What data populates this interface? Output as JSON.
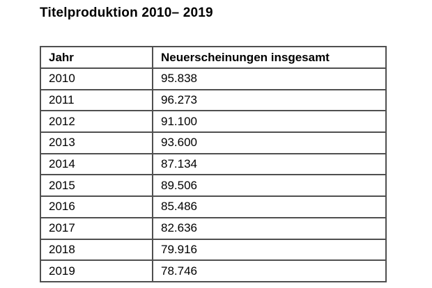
{
  "page": {
    "title": "Titelproduktion 2010– 2019"
  },
  "table": {
    "columns": [
      "Jahr",
      "Neuerscheinungen insgesamt"
    ],
    "rows": [
      {
        "jahr": "2010",
        "wert": "95.838"
      },
      {
        "jahr": "2011",
        "wert": "96.273"
      },
      {
        "jahr": "2012",
        "wert": "91.100"
      },
      {
        "jahr": "2013",
        "wert": "93.600"
      },
      {
        "jahr": "2014",
        "wert": "87.134"
      },
      {
        "jahr": "2015",
        "wert": "89.506"
      },
      {
        "jahr": "2016",
        "wert": "85.486"
      },
      {
        "jahr": "2017",
        "wert": "82.636"
      },
      {
        "jahr": "2018",
        "wert": "79.916"
      },
      {
        "jahr": "2019",
        "wert": "78.746"
      }
    ]
  },
  "colors": {
    "background": "#ffffff",
    "border": "#4f4f4f",
    "text": "#000000"
  },
  "chart_data": {
    "type": "table",
    "title": "Titelproduktion 2010– 2019",
    "categories": [
      "2010",
      "2011",
      "2012",
      "2013",
      "2014",
      "2015",
      "2016",
      "2017",
      "2018",
      "2019"
    ],
    "values": [
      95838,
      96273,
      91100,
      93600,
      87134,
      89506,
      85486,
      82636,
      79916,
      78746
    ],
    "series": [
      {
        "name": "Neuerscheinungen insgesamt",
        "values": [
          95838,
          96273,
          91100,
          93600,
          87134,
          89506,
          85486,
          82636,
          79916,
          78746
        ]
      }
    ],
    "xlabel": "Jahr",
    "ylabel": "Neuerscheinungen insgesamt"
  }
}
